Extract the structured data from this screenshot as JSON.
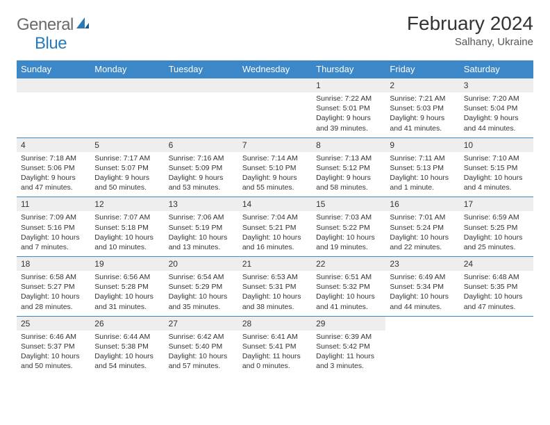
{
  "brand": {
    "part1": "General",
    "part2": "Blue"
  },
  "header": {
    "title": "February 2024",
    "location": "Salhany, Ukraine"
  },
  "colors": {
    "header_bg": "#3b87c8",
    "header_fg": "#ffffff",
    "daynum_bg": "#eeeeee",
    "rule": "#3b87c8",
    "brand_gray": "#6a6a6a",
    "brand_blue": "#2a7ab9"
  },
  "weekdays": [
    "Sunday",
    "Monday",
    "Tuesday",
    "Wednesday",
    "Thursday",
    "Friday",
    "Saturday"
  ],
  "weeks": [
    [
      null,
      null,
      null,
      null,
      {
        "n": "1",
        "sr": "7:22 AM",
        "ss": "5:01 PM",
        "dl": "9 hours and 39 minutes."
      },
      {
        "n": "2",
        "sr": "7:21 AM",
        "ss": "5:03 PM",
        "dl": "9 hours and 41 minutes."
      },
      {
        "n": "3",
        "sr": "7:20 AM",
        "ss": "5:04 PM",
        "dl": "9 hours and 44 minutes."
      }
    ],
    [
      {
        "n": "4",
        "sr": "7:18 AM",
        "ss": "5:06 PM",
        "dl": "9 hours and 47 minutes."
      },
      {
        "n": "5",
        "sr": "7:17 AM",
        "ss": "5:07 PM",
        "dl": "9 hours and 50 minutes."
      },
      {
        "n": "6",
        "sr": "7:16 AM",
        "ss": "5:09 PM",
        "dl": "9 hours and 53 minutes."
      },
      {
        "n": "7",
        "sr": "7:14 AM",
        "ss": "5:10 PM",
        "dl": "9 hours and 55 minutes."
      },
      {
        "n": "8",
        "sr": "7:13 AM",
        "ss": "5:12 PM",
        "dl": "9 hours and 58 minutes."
      },
      {
        "n": "9",
        "sr": "7:11 AM",
        "ss": "5:13 PM",
        "dl": "10 hours and 1 minute."
      },
      {
        "n": "10",
        "sr": "7:10 AM",
        "ss": "5:15 PM",
        "dl": "10 hours and 4 minutes."
      }
    ],
    [
      {
        "n": "11",
        "sr": "7:09 AM",
        "ss": "5:16 PM",
        "dl": "10 hours and 7 minutes."
      },
      {
        "n": "12",
        "sr": "7:07 AM",
        "ss": "5:18 PM",
        "dl": "10 hours and 10 minutes."
      },
      {
        "n": "13",
        "sr": "7:06 AM",
        "ss": "5:19 PM",
        "dl": "10 hours and 13 minutes."
      },
      {
        "n": "14",
        "sr": "7:04 AM",
        "ss": "5:21 PM",
        "dl": "10 hours and 16 minutes."
      },
      {
        "n": "15",
        "sr": "7:03 AM",
        "ss": "5:22 PM",
        "dl": "10 hours and 19 minutes."
      },
      {
        "n": "16",
        "sr": "7:01 AM",
        "ss": "5:24 PM",
        "dl": "10 hours and 22 minutes."
      },
      {
        "n": "17",
        "sr": "6:59 AM",
        "ss": "5:25 PM",
        "dl": "10 hours and 25 minutes."
      }
    ],
    [
      {
        "n": "18",
        "sr": "6:58 AM",
        "ss": "5:27 PM",
        "dl": "10 hours and 28 minutes."
      },
      {
        "n": "19",
        "sr": "6:56 AM",
        "ss": "5:28 PM",
        "dl": "10 hours and 31 minutes."
      },
      {
        "n": "20",
        "sr": "6:54 AM",
        "ss": "5:29 PM",
        "dl": "10 hours and 35 minutes."
      },
      {
        "n": "21",
        "sr": "6:53 AM",
        "ss": "5:31 PM",
        "dl": "10 hours and 38 minutes."
      },
      {
        "n": "22",
        "sr": "6:51 AM",
        "ss": "5:32 PM",
        "dl": "10 hours and 41 minutes."
      },
      {
        "n": "23",
        "sr": "6:49 AM",
        "ss": "5:34 PM",
        "dl": "10 hours and 44 minutes."
      },
      {
        "n": "24",
        "sr": "6:48 AM",
        "ss": "5:35 PM",
        "dl": "10 hours and 47 minutes."
      }
    ],
    [
      {
        "n": "25",
        "sr": "6:46 AM",
        "ss": "5:37 PM",
        "dl": "10 hours and 50 minutes."
      },
      {
        "n": "26",
        "sr": "6:44 AM",
        "ss": "5:38 PM",
        "dl": "10 hours and 54 minutes."
      },
      {
        "n": "27",
        "sr": "6:42 AM",
        "ss": "5:40 PM",
        "dl": "10 hours and 57 minutes."
      },
      {
        "n": "28",
        "sr": "6:41 AM",
        "ss": "5:41 PM",
        "dl": "11 hours and 0 minutes."
      },
      {
        "n": "29",
        "sr": "6:39 AM",
        "ss": "5:42 PM",
        "dl": "11 hours and 3 minutes."
      },
      null,
      null
    ]
  ],
  "labels": {
    "sunrise": "Sunrise: ",
    "sunset": "Sunset: ",
    "daylight": "Daylight: "
  }
}
